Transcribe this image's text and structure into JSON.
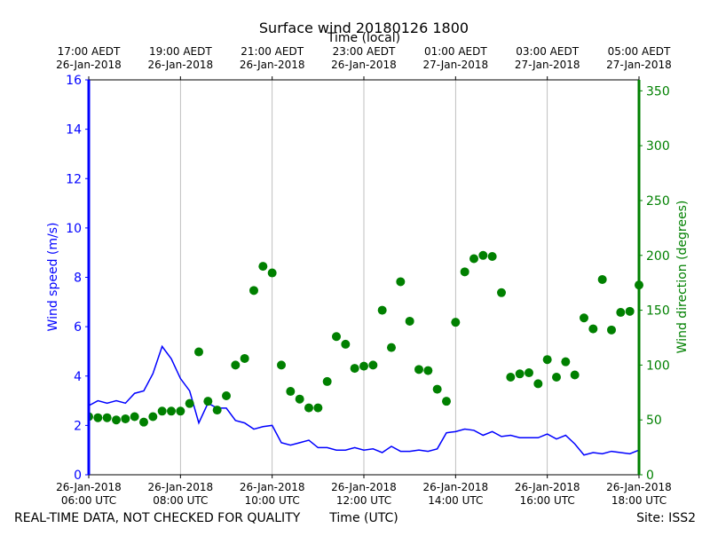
{
  "chart_data": {
    "type": "line",
    "title": "Surface wind 20180126 1800",
    "xlabel": "Time (UTC)",
    "x2label": "Time (local)",
    "ylabel": "Wind speed (m/s)",
    "y2label": "Wind direction (degrees)",
    "footer_left": "REAL-TIME DATA, NOT CHECKED FOR QUALITY",
    "footer_right": "Site: ISS2",
    "xlim": [
      6,
      18
    ],
    "ylim": [
      0,
      16
    ],
    "y2lim": [
      0,
      360
    ],
    "grid": true,
    "xticks": [
      {
        "value": 6,
        "label": [
          "26-Jan-2018",
          "06:00 UTC"
        ]
      },
      {
        "value": 8,
        "label": [
          "26-Jan-2018",
          "08:00 UTC"
        ]
      },
      {
        "value": 10,
        "label": [
          "26-Jan-2018",
          "10:00 UTC"
        ]
      },
      {
        "value": 12,
        "label": [
          "26-Jan-2018",
          "12:00 UTC"
        ]
      },
      {
        "value": 14,
        "label": [
          "26-Jan-2018",
          "14:00 UTC"
        ]
      },
      {
        "value": 16,
        "label": [
          "26-Jan-2018",
          "16:00 UTC"
        ]
      },
      {
        "value": 18,
        "label": [
          "26-Jan-2018",
          "18:00 UTC"
        ]
      }
    ],
    "x2ticks": [
      {
        "value": 6,
        "label": [
          "17:00 AEDT",
          "26-Jan-2018"
        ]
      },
      {
        "value": 8,
        "label": [
          "19:00 AEDT",
          "26-Jan-2018"
        ]
      },
      {
        "value": 10,
        "label": [
          "21:00 AEDT",
          "26-Jan-2018"
        ]
      },
      {
        "value": 12,
        "label": [
          "23:00 AEDT",
          "26-Jan-2018"
        ]
      },
      {
        "value": 14,
        "label": [
          "01:00 AEDT",
          "27-Jan-2018"
        ]
      },
      {
        "value": 16,
        "label": [
          "03:00 AEDT",
          "27-Jan-2018"
        ]
      },
      {
        "value": 18,
        "label": [
          "05:00 AEDT",
          "27-Jan-2018"
        ]
      }
    ],
    "yticks": [
      0,
      2,
      4,
      6,
      8,
      10,
      12,
      14,
      16
    ],
    "y2ticks": [
      0,
      50,
      100,
      150,
      200,
      250,
      300,
      350
    ],
    "x": [
      6,
      6.2,
      6.4,
      6.6,
      6.8,
      7,
      7.2,
      7.4,
      7.6,
      7.8,
      8,
      8.2,
      8.4,
      8.6,
      8.8,
      9,
      9.2,
      9.4,
      9.6,
      9.8,
      10,
      10.2,
      10.4,
      10.6,
      10.8,
      11,
      11.2,
      11.4,
      11.6,
      11.8,
      12,
      12.2,
      12.4,
      12.6,
      12.8,
      13,
      13.2,
      13.4,
      13.6,
      13.8,
      14,
      14.2,
      14.4,
      14.6,
      14.8,
      15,
      15.2,
      15.4,
      15.6,
      15.8,
      16,
      16.2,
      16.4,
      16.6,
      16.8,
      17,
      17.2,
      17.4,
      17.6,
      17.8,
      18
    ],
    "series": [
      {
        "type": "line",
        "axis": "y",
        "color": "#0000ff",
        "values": [
          2.8,
          3.0,
          2.9,
          3.0,
          2.9,
          3.3,
          3.4,
          4.1,
          5.2,
          4.7,
          3.9,
          3.4,
          2.1,
          2.9,
          2.7,
          2.7,
          2.2,
          2.1,
          1.85,
          1.95,
          2.0,
          1.3,
          1.2,
          1.3,
          1.4,
          1.1,
          1.1,
          1.0,
          1.0,
          1.1,
          1.0,
          1.05,
          0.9,
          1.15,
          0.95,
          0.95,
          1.0,
          0.95,
          1.05,
          1.7,
          1.75,
          1.85,
          1.8,
          1.6,
          1.75,
          1.55,
          1.6,
          1.5,
          1.5,
          1.5,
          1.65,
          1.45,
          1.6,
          1.25,
          0.8,
          0.9,
          0.85,
          0.95,
          0.9,
          0.85,
          1.0
        ]
      },
      {
        "type": "scatter",
        "axis": "y2",
        "color": "#008000",
        "values": [
          53,
          52,
          52,
          50,
          51,
          53,
          48,
          53,
          58,
          58,
          58,
          65,
          112,
          67,
          59,
          72,
          100,
          106,
          168,
          190,
          184,
          100,
          76,
          69,
          61,
          61,
          85,
          126,
          119,
          97,
          99,
          100,
          150,
          116,
          176,
          140,
          96,
          95,
          78,
          67,
          139,
          185,
          197,
          200,
          199,
          166,
          89,
          92,
          93,
          83,
          105,
          89,
          103,
          91,
          143,
          133,
          178,
          132,
          148,
          149,
          173
        ]
      }
    ]
  }
}
